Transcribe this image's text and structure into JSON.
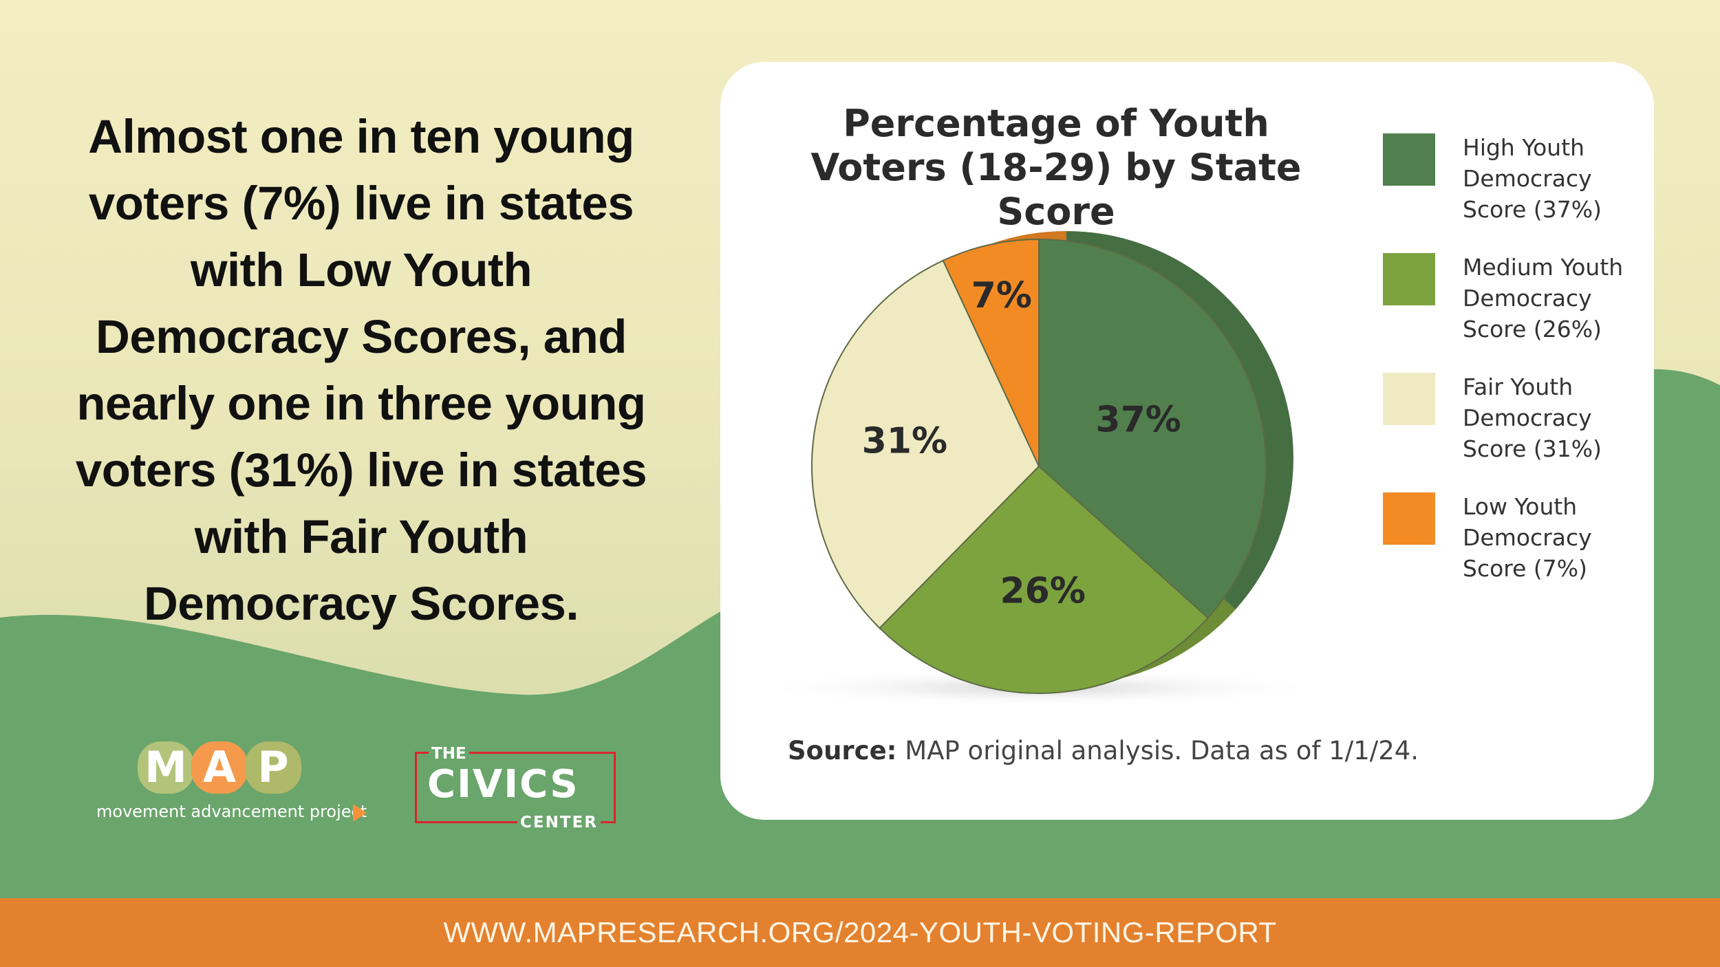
{
  "headline": "Almost one in ten young voters (7%) live in states with Low Youth Democracy Scores, and nearly one in three young voters (31%) live in states with Fair Youth Democracy Scores.",
  "chart_data": {
    "type": "pie",
    "title": "Percentage of Youth Voters (18-29) by State Score",
    "slices": [
      {
        "label": "High Youth Democracy Score (37%)",
        "value": 37,
        "display": "37%",
        "color": "#51804e"
      },
      {
        "label": "Medium Youth Democracy Score (26%)",
        "value": 26,
        "display": "26%",
        "color": "#7da33e"
      },
      {
        "label": "Fair Youth Democracy Score (31%)",
        "value": 31,
        "display": "31%",
        "color": "#f0eac2"
      },
      {
        "label": "Low Youth Democracy Score (7%)",
        "value": 7,
        "display": "7%",
        "color": "#f38b25"
      }
    ],
    "legend_position": "right",
    "source_label": "Source:",
    "source_text": "MAP original analysis. Data as of 1/1/24."
  },
  "legend": [
    {
      "text": "High Youth Democracy Score (37%)",
      "color": "#51804e"
    },
    {
      "text": "Medium Youth Democracy Score (26%)",
      "color": "#7da33e"
    },
    {
      "text": "Fair Youth Democracy Score (31%)",
      "color": "#f0eac2"
    },
    {
      "text": "Low Youth Democracy Score (7%)",
      "color": "#f38b25"
    }
  ],
  "logos": {
    "map_letters": [
      "M",
      "A",
      "P"
    ],
    "map_letter_colors": [
      "#b3c47a",
      "#f59a4c",
      "#aeb96a"
    ],
    "map_tagline": "movement advancement project",
    "civics_the": "THE",
    "civics_main": "CIVICS",
    "civics_center": "CENTER"
  },
  "footer": {
    "url": "WWW.MAPRESEARCH.ORG/2024-YOUTH-VOTING-REPORT"
  },
  "colors": {
    "background_top": "#f2edc4",
    "green_wave": "#6aa56b",
    "footer": "#e4812e",
    "card": "#ffffff"
  }
}
